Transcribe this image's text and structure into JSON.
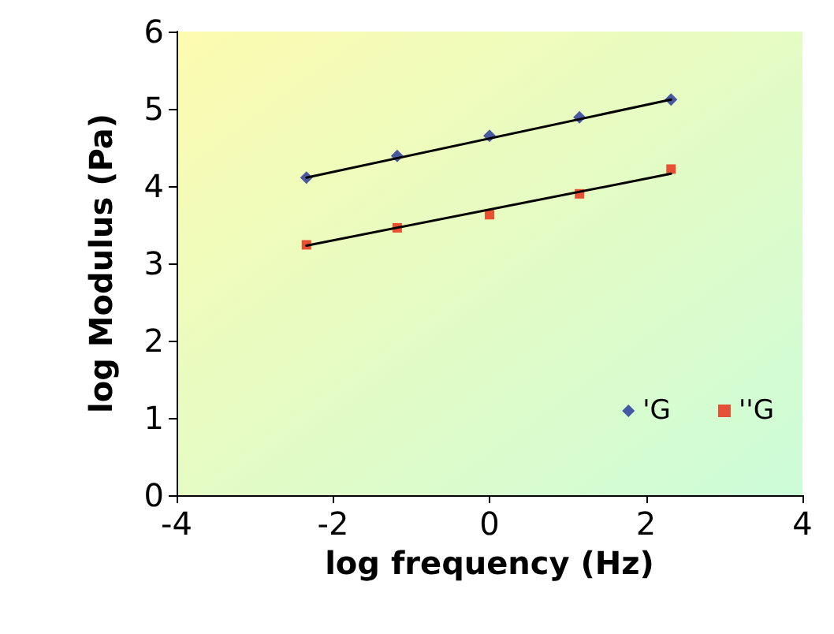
{
  "chart_data": {
    "type": "scatter",
    "xlabel": "log frequency (Hz)",
    "ylabel": "log Modulus (Pa)",
    "xlim": [
      -4,
      4
    ],
    "xticks": [
      -4,
      -2,
      0,
      2,
      4
    ],
    "ylim": [
      0,
      6
    ],
    "yticks": [
      0,
      1,
      2,
      3,
      4,
      5,
      6
    ],
    "grid": false,
    "legend": "bottom right",
    "series": [
      {
        "name": "'G",
        "color": "#1f2f9a",
        "marker": "diamond",
        "x": [
          -2.34,
          -1.18,
          0,
          1.15,
          2.32
        ],
        "values": [
          4.11,
          4.39,
          4.65,
          4.89,
          5.12
        ]
      },
      {
        "name": "''G",
        "color": "#e8250c",
        "marker": "square",
        "x": [
          -2.34,
          -1.18,
          0,
          1.15,
          2.32
        ],
        "values": [
          3.24,
          3.46,
          3.63,
          3.9,
          4.22
        ]
      },
      {
        "type": "line",
        "color": "#000000",
        "marker": "none",
        "line_style": "solid",
        "x": [
          -2.34,
          2.32
        ],
        "values": [
          4.11,
          5.12
        ]
      },
      {
        "type": "line",
        "color": "#000000",
        "marker": "none",
        "line_style": "solid",
        "x": [
          -2.34,
          2.32
        ],
        "values": [
          3.23,
          4.16
        ]
      }
    ]
  }
}
